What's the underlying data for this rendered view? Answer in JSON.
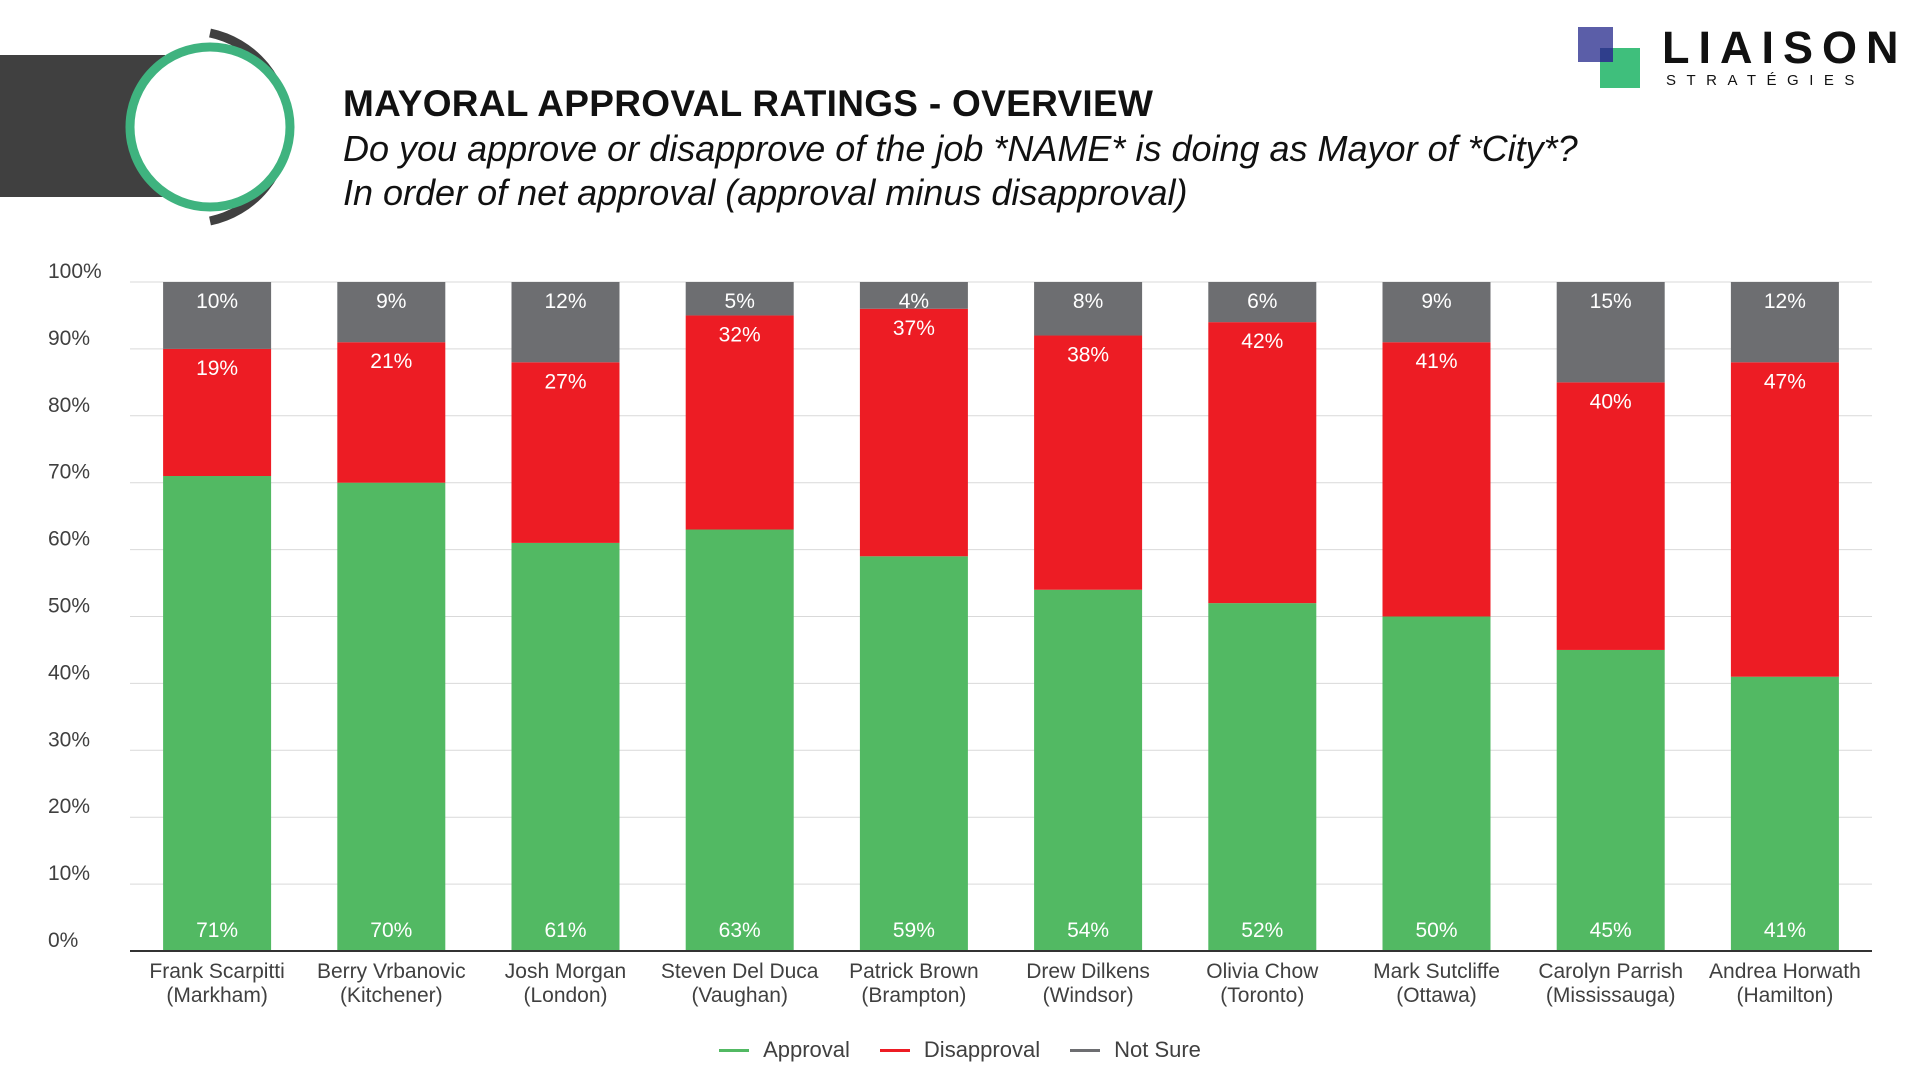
{
  "header": {
    "title": "MAYORAL APPROVAL RATINGS - OVERVIEW",
    "subtitle_line1": "Do you approve or disapprove of the job *NAME* is doing as Mayor of *City*?",
    "subtitle_line2": "In order of net approval (approval minus disapproval)"
  },
  "logo": {
    "word": "LIAISON",
    "sub": "STRATÉGIES"
  },
  "colors": {
    "approval": "#52b963",
    "disapproval": "#ed1c24",
    "not_sure": "#6d6e71",
    "ring_green": "#3fb37f",
    "ring_dark": "#404040"
  },
  "chart_data": {
    "type": "bar",
    "stacked": true,
    "title": "MAYORAL APPROVAL RATINGS - OVERVIEW",
    "xlabel": "",
    "ylabel": "",
    "ylim": [
      0,
      100
    ],
    "yticks": [
      "0%",
      "10%",
      "20%",
      "30%",
      "40%",
      "50%",
      "60%",
      "70%",
      "80%",
      "90%",
      "100%"
    ],
    "grid": true,
    "legend_position": "bottom-center",
    "categories": [
      [
        "Frank Scarpitti",
        "(Markham)"
      ],
      [
        "Berry Vrbanovic",
        "(Kitchener)"
      ],
      [
        "Josh Morgan",
        "(London)"
      ],
      [
        "Steven Del Duca",
        "(Vaughan)"
      ],
      [
        "Patrick Brown",
        "(Brampton)"
      ],
      [
        "Drew Dilkens",
        "(Windsor)"
      ],
      [
        "Olivia Chow",
        "(Toronto)"
      ],
      [
        "Mark Sutcliffe",
        "(Ottawa)"
      ],
      [
        "Carolyn Parrish",
        "(Mississauga)"
      ],
      [
        "Andrea Horwath",
        "(Hamilton)"
      ]
    ],
    "series": [
      {
        "name": "Approval",
        "color": "#52b963",
        "values": [
          71,
          70,
          61,
          63,
          59,
          54,
          52,
          50,
          45,
          41
        ]
      },
      {
        "name": "Disapproval",
        "color": "#ed1c24",
        "values": [
          19,
          21,
          27,
          32,
          37,
          38,
          42,
          41,
          40,
          47
        ]
      },
      {
        "name": "Not Sure",
        "color": "#6d6e71",
        "values": [
          10,
          9,
          12,
          5,
          4,
          8,
          6,
          9,
          15,
          12
        ]
      }
    ]
  }
}
